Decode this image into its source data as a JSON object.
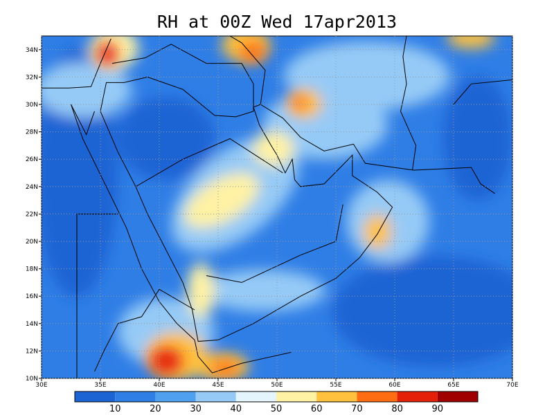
{
  "title": "RH at 00Z Wed 17apr2013",
  "map": {
    "lon_ticks": [
      {
        "value": 30,
        "label": "30E"
      },
      {
        "value": 35,
        "label": "35E"
      },
      {
        "value": 40,
        "label": "40E"
      },
      {
        "value": 45,
        "label": "45E"
      },
      {
        "value": 50,
        "label": "50E"
      },
      {
        "value": 55,
        "label": "55E"
      },
      {
        "value": 60,
        "label": "60E"
      },
      {
        "value": 65,
        "label": "65E"
      },
      {
        "value": 70,
        "label": "70E"
      }
    ],
    "lat_ticks": [
      {
        "value": 10,
        "label": "10N"
      },
      {
        "value": 12,
        "label": "12N"
      },
      {
        "value": 14,
        "label": "14N"
      },
      {
        "value": 16,
        "label": "16N"
      },
      {
        "value": 18,
        "label": "18N"
      },
      {
        "value": 20,
        "label": "20N"
      },
      {
        "value": 22,
        "label": "22N"
      },
      {
        "value": 24,
        "label": "24N"
      },
      {
        "value": 26,
        "label": "26N"
      },
      {
        "value": 28,
        "label": "28N"
      },
      {
        "value": 30,
        "label": "30N"
      },
      {
        "value": 32,
        "label": "32N"
      },
      {
        "value": 34,
        "label": "34N"
      }
    ],
    "lon_range": [
      30,
      70
    ],
    "lat_range": [
      10,
      35
    ]
  },
  "colorbar": {
    "colors": [
      "#1c64d4",
      "#2f7ee6",
      "#50a0f0",
      "#96caf6",
      "#e4f5fd",
      "#fff2a4",
      "#ffc13e",
      "#ff6d12",
      "#e42008",
      "#a00000"
    ],
    "labels": [
      "10",
      "20",
      "30",
      "40",
      "50",
      "60",
      "70",
      "80",
      "90"
    ]
  }
}
